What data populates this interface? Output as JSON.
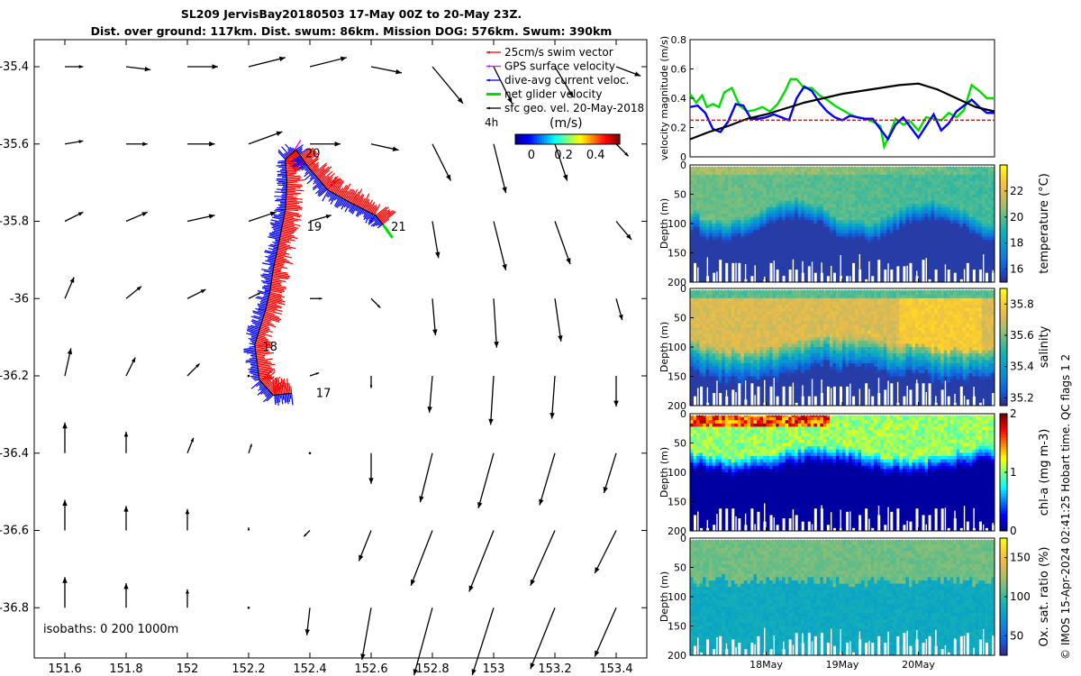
{
  "title": {
    "line1": "SL209 JervisBay20180503 17-May 00Z to 20-May 23Z.",
    "line2": "Dist. over ground: 117km. Dist. swum: 86km. Mission DOG: 576km. Swum: 390km"
  },
  "credit": "© IMOS 15-Apr-2024 02:41:25 Hobart time. QC flags 1  2",
  "colors": {
    "track_red": "#ff0000",
    "track_blue": "#0000ff",
    "glider_green": "#00e000",
    "gps_magenta": "#ff00ff",
    "black": "#000000"
  },
  "chart_data": [
    {
      "type": "scatter",
      "name": "map",
      "xlim": [
        151.5,
        153.5
      ],
      "ylim": [
        -36.93,
        -35.33
      ],
      "xticks": [
        "151.6",
        "151.8",
        "152",
        "152.2",
        "152.4",
        "152.6",
        "152.8",
        "153",
        "153.2",
        "153.4"
      ],
      "xtick_values": [
        151.6,
        151.8,
        152.0,
        152.2,
        152.4,
        152.6,
        152.8,
        153.0,
        153.2,
        153.4
      ],
      "yticks": [
        "-35.4",
        "-35.6",
        "-35.8",
        "-36",
        "-36.2",
        "-36.4",
        "-36.6",
        "-36.8"
      ],
      "ytick_values": [
        -35.4,
        -35.6,
        -35.8,
        -36.0,
        -36.2,
        -36.4,
        -36.6,
        -36.8
      ],
      "isobaths_label": "isobaths: 0   200  1000m",
      "legend": [
        {
          "label": "25cm/s swim vector",
          "color": "#ff0000"
        },
        {
          "label": "GPS surface velocity",
          "color": "#ff00ff"
        },
        {
          "label": "dive-avg current veloc.",
          "color": "#0000ff"
        },
        {
          "label": "net glider velocity",
          "color": "#00e000"
        },
        {
          "label": "sfc geo. vel. 20-May-2018",
          "color": "#000000"
        }
      ],
      "legend_extra": "4h",
      "colorbar": {
        "label": "(m/s)",
        "ticks": [
          "0",
          "0.2",
          "0.4"
        ],
        "range": [
          -0.1,
          0.55
        ]
      },
      "day_labels": [
        {
          "text": "17",
          "lon": 152.42,
          "lat": -36.245
        },
        {
          "text": "18",
          "lon": 152.245,
          "lat": -36.125
        },
        {
          "text": "19",
          "lon": 152.39,
          "lat": -35.815
        },
        {
          "text": "20",
          "lon": 152.385,
          "lat": -35.625
        },
        {
          "text": "21",
          "lon": 152.665,
          "lat": -35.815
        }
      ],
      "track": [
        {
          "lon": 152.34,
          "lat": -36.245
        },
        {
          "lon": 152.28,
          "lat": -36.25
        },
        {
          "lon": 152.235,
          "lat": -36.21
        },
        {
          "lon": 152.22,
          "lat": -36.12
        },
        {
          "lon": 152.255,
          "lat": -36.03
        },
        {
          "lon": 152.27,
          "lat": -35.98
        },
        {
          "lon": 152.28,
          "lat": -35.925
        },
        {
          "lon": 152.3,
          "lat": -35.85
        },
        {
          "lon": 152.32,
          "lat": -35.77
        },
        {
          "lon": 152.325,
          "lat": -35.7
        },
        {
          "lon": 152.32,
          "lat": -35.64
        },
        {
          "lon": 152.355,
          "lat": -35.615
        },
        {
          "lon": 152.395,
          "lat": -35.66
        },
        {
          "lon": 152.46,
          "lat": -35.72
        },
        {
          "lon": 152.54,
          "lat": -35.755
        },
        {
          "lon": 152.615,
          "lat": -35.785
        },
        {
          "lon": 152.64,
          "lat": -35.81
        }
      ],
      "vectors": [
        {
          "lon": 151.6,
          "lat": -35.4,
          "u": 0.06,
          "v": 0.0
        },
        {
          "lon": 151.8,
          "lat": -35.4,
          "u": 0.08,
          "v": -0.01
        },
        {
          "lon": 152.0,
          "lat": -35.4,
          "u": 0.1,
          "v": 0.0
        },
        {
          "lon": 152.2,
          "lat": -35.4,
          "u": 0.12,
          "v": 0.03
        },
        {
          "lon": 152.4,
          "lat": -35.4,
          "u": 0.12,
          "v": 0.03
        },
        {
          "lon": 152.6,
          "lat": -35.4,
          "u": 0.1,
          "v": -0.02
        },
        {
          "lon": 152.8,
          "lat": -35.4,
          "u": 0.1,
          "v": -0.12
        },
        {
          "lon": 153.0,
          "lat": -35.4,
          "u": 0.06,
          "v": -0.12
        },
        {
          "lon": 153.2,
          "lat": -35.4,
          "u": 0.06,
          "v": -0.1
        },
        {
          "lon": 153.4,
          "lat": -35.4,
          "u": 0.08,
          "v": -0.03
        },
        {
          "lon": 151.6,
          "lat": -35.6,
          "u": 0.06,
          "v": 0.01
        },
        {
          "lon": 151.8,
          "lat": -35.6,
          "u": 0.07,
          "v": 0.0
        },
        {
          "lon": 152.0,
          "lat": -35.6,
          "u": 0.09,
          "v": 0.0
        },
        {
          "lon": 152.2,
          "lat": -35.6,
          "u": 0.11,
          "v": 0.04
        },
        {
          "lon": 152.4,
          "lat": -35.6,
          "u": 0.1,
          "v": 0.0
        },
        {
          "lon": 152.6,
          "lat": -35.6,
          "u": 0.09,
          "v": -0.02
        },
        {
          "lon": 152.8,
          "lat": -35.6,
          "u": 0.06,
          "v": -0.12
        },
        {
          "lon": 153.0,
          "lat": -35.6,
          "u": 0.04,
          "v": -0.16
        },
        {
          "lon": 153.2,
          "lat": -35.6,
          "u": 0.04,
          "v": -0.12
        },
        {
          "lon": 153.4,
          "lat": -35.6,
          "u": 0.04,
          "v": -0.04
        },
        {
          "lon": 151.6,
          "lat": -35.8,
          "u": 0.06,
          "v": 0.03
        },
        {
          "lon": 151.8,
          "lat": -35.8,
          "u": 0.07,
          "v": 0.03
        },
        {
          "lon": 152.0,
          "lat": -35.8,
          "u": 0.09,
          "v": 0.02
        },
        {
          "lon": 152.2,
          "lat": -35.8,
          "u": 0.09,
          "v": 0.03
        },
        {
          "lon": 152.4,
          "lat": -35.8,
          "u": 0.07,
          "v": 0.02
        },
        {
          "lon": 152.6,
          "lat": -35.8,
          "u": 0.0,
          "v": 0.0
        },
        {
          "lon": 152.8,
          "lat": -35.8,
          "u": 0.02,
          "v": -0.12
        },
        {
          "lon": 153.0,
          "lat": -35.8,
          "u": 0.04,
          "v": -0.16
        },
        {
          "lon": 153.2,
          "lat": -35.8,
          "u": 0.05,
          "v": -0.14
        },
        {
          "lon": 153.4,
          "lat": -35.8,
          "u": 0.05,
          "v": -0.06
        },
        {
          "lon": 151.6,
          "lat": -36.0,
          "u": 0.03,
          "v": 0.07
        },
        {
          "lon": 151.8,
          "lat": -36.0,
          "u": 0.05,
          "v": 0.04
        },
        {
          "lon": 152.0,
          "lat": -36.0,
          "u": 0.06,
          "v": 0.03
        },
        {
          "lon": 152.2,
          "lat": -36.0,
          "u": 0.04,
          "v": 0.02
        },
        {
          "lon": 152.4,
          "lat": -36.0,
          "u": 0.04,
          "v": 0.0
        },
        {
          "lon": 152.6,
          "lat": -36.0,
          "u": 0.03,
          "v": -0.03
        },
        {
          "lon": 152.8,
          "lat": -36.0,
          "u": 0.01,
          "v": -0.12
        },
        {
          "lon": 153.0,
          "lat": -36.0,
          "u": 0.01,
          "v": -0.16
        },
        {
          "lon": 153.2,
          "lat": -36.0,
          "u": 0.02,
          "v": -0.14
        },
        {
          "lon": 153.4,
          "lat": -36.0,
          "u": 0.02,
          "v": -0.07
        },
        {
          "lon": 151.6,
          "lat": -36.2,
          "u": 0.02,
          "v": 0.09
        },
        {
          "lon": 151.8,
          "lat": -36.2,
          "u": 0.03,
          "v": 0.06
        },
        {
          "lon": 152.0,
          "lat": -36.2,
          "u": 0.04,
          "v": 0.04
        },
        {
          "lon": 152.2,
          "lat": -36.2,
          "u": 0.0,
          "v": 0.0
        },
        {
          "lon": 152.4,
          "lat": -36.2,
          "u": 0.03,
          "v": 0.01
        },
        {
          "lon": 152.6,
          "lat": -36.2,
          "u": 0.0,
          "v": -0.04
        },
        {
          "lon": 152.8,
          "lat": -36.2,
          "u": -0.01,
          "v": -0.12
        },
        {
          "lon": 153.0,
          "lat": -36.2,
          "u": -0.01,
          "v": -0.16
        },
        {
          "lon": 153.2,
          "lat": -36.2,
          "u": -0.01,
          "v": -0.14
        },
        {
          "lon": 153.4,
          "lat": -36.2,
          "u": 0.0,
          "v": -0.1
        },
        {
          "lon": 151.6,
          "lat": -36.4,
          "u": 0.0,
          "v": 0.1
        },
        {
          "lon": 151.8,
          "lat": -36.4,
          "u": 0.0,
          "v": 0.07
        },
        {
          "lon": 152.0,
          "lat": -36.4,
          "u": 0.02,
          "v": 0.05
        },
        {
          "lon": 152.2,
          "lat": -36.4,
          "u": 0.01,
          "v": 0.03
        },
        {
          "lon": 152.4,
          "lat": -36.4,
          "u": 0.0,
          "v": 0.0
        },
        {
          "lon": 152.6,
          "lat": -36.4,
          "u": 0.0,
          "v": -0.1
        },
        {
          "lon": 152.8,
          "lat": -36.4,
          "u": -0.04,
          "v": -0.16
        },
        {
          "lon": 153.0,
          "lat": -36.4,
          "u": -0.05,
          "v": -0.18
        },
        {
          "lon": 153.2,
          "lat": -36.4,
          "u": -0.05,
          "v": -0.17
        },
        {
          "lon": 153.4,
          "lat": -36.4,
          "u": -0.04,
          "v": -0.13
        },
        {
          "lon": 151.6,
          "lat": -36.6,
          "u": 0.0,
          "v": 0.1
        },
        {
          "lon": 151.8,
          "lat": -36.6,
          "u": 0.0,
          "v": 0.08
        },
        {
          "lon": 152.0,
          "lat": -36.6,
          "u": 0.0,
          "v": 0.07
        },
        {
          "lon": 152.2,
          "lat": -36.6,
          "u": 0.0,
          "v": 0.01
        },
        {
          "lon": 152.4,
          "lat": -36.6,
          "u": -0.02,
          "v": -0.02
        },
        {
          "lon": 152.6,
          "lat": -36.6,
          "u": -0.04,
          "v": -0.1
        },
        {
          "lon": 152.8,
          "lat": -36.6,
          "u": -0.07,
          "v": -0.18
        },
        {
          "lon": 153.0,
          "lat": -36.6,
          "u": -0.08,
          "v": -0.2
        },
        {
          "lon": 153.2,
          "lat": -36.6,
          "u": -0.08,
          "v": -0.18
        },
        {
          "lon": 153.4,
          "lat": -36.6,
          "u": -0.07,
          "v": -0.14
        },
        {
          "lon": 151.6,
          "lat": -36.8,
          "u": 0.0,
          "v": 0.1
        },
        {
          "lon": 151.8,
          "lat": -36.8,
          "u": 0.0,
          "v": 0.08
        },
        {
          "lon": 152.0,
          "lat": -36.8,
          "u": 0.0,
          "v": 0.06
        },
        {
          "lon": 152.2,
          "lat": -36.8,
          "u": 0.0,
          "v": 0.0
        },
        {
          "lon": 152.4,
          "lat": -36.8,
          "u": -0.01,
          "v": -0.09
        },
        {
          "lon": 152.6,
          "lat": -36.8,
          "u": -0.03,
          "v": -0.17
        },
        {
          "lon": 152.8,
          "lat": -36.8,
          "u": -0.06,
          "v": -0.22
        },
        {
          "lon": 153.0,
          "lat": -36.8,
          "u": -0.07,
          "v": -0.22
        },
        {
          "lon": 153.2,
          "lat": -36.8,
          "u": -0.08,
          "v": -0.2
        },
        {
          "lon": 153.4,
          "lat": -36.8,
          "u": -0.07,
          "v": -0.16
        }
      ]
    },
    {
      "type": "line",
      "name": "velocity",
      "ylabel": "velocity magnitude (m/s)",
      "ylim": [
        0,
        0.8
      ],
      "yticks": [
        "0",
        "0.2",
        "0.4",
        "0.6",
        "0.8"
      ],
      "ytick_values": [
        0,
        0.2,
        0.4,
        0.6,
        0.8
      ],
      "xlim": [
        0,
        4
      ],
      "series": [
        {
          "color": "#00e000",
          "x": [
            0,
            0.08,
            0.16,
            0.22,
            0.3,
            0.38,
            0.45,
            0.55,
            0.65,
            0.75,
            0.85,
            0.95,
            1.05,
            1.15,
            1.25,
            1.32,
            1.4,
            1.5,
            1.6,
            1.7,
            1.8,
            1.9,
            2.0,
            2.1,
            2.2,
            2.3,
            2.4,
            2.5,
            2.55,
            2.62,
            2.7,
            2.8,
            2.9,
            3.0,
            3.1,
            3.2,
            3.3,
            3.4,
            3.5,
            3.6,
            3.7,
            3.8,
            3.9,
            4.0
          ],
          "y": [
            0.43,
            0.37,
            0.42,
            0.34,
            0.36,
            0.34,
            0.44,
            0.47,
            0.35,
            0.31,
            0.32,
            0.34,
            0.31,
            0.36,
            0.45,
            0.53,
            0.53,
            0.47,
            0.47,
            0.42,
            0.39,
            0.35,
            0.32,
            0.29,
            0.27,
            0.26,
            0.24,
            0.21,
            0.07,
            0.15,
            0.26,
            0.22,
            0.24,
            0.18,
            0.27,
            0.26,
            0.25,
            0.3,
            0.27,
            0.32,
            0.49,
            0.45,
            0.4,
            0.4
          ]
        },
        {
          "color": "#0000ff",
          "x": [
            0,
            0.1,
            0.2,
            0.3,
            0.4,
            0.5,
            0.6,
            0.7,
            0.8,
            0.9,
            1.0,
            1.1,
            1.2,
            1.3,
            1.4,
            1.5,
            1.6,
            1.7,
            1.8,
            1.9,
            2.0,
            2.1,
            2.2,
            2.3,
            2.4,
            2.5,
            2.6,
            2.7,
            2.8,
            2.9,
            3.0,
            3.1,
            3.2,
            3.3,
            3.4,
            3.5,
            3.6,
            3.7,
            3.8,
            3.9,
            4.0
          ],
          "y": [
            0.34,
            0.35,
            0.3,
            0.19,
            0.17,
            0.24,
            0.36,
            0.35,
            0.26,
            0.26,
            0.27,
            0.29,
            0.27,
            0.25,
            0.4,
            0.48,
            0.45,
            0.37,
            0.31,
            0.27,
            0.25,
            0.28,
            0.27,
            0.26,
            0.26,
            0.19,
            0.12,
            0.22,
            0.27,
            0.2,
            0.13,
            0.21,
            0.29,
            0.18,
            0.23,
            0.31,
            0.35,
            0.39,
            0.34,
            0.3,
            0.3
          ]
        },
        {
          "color": "#000000",
          "x": [
            0,
            0.25,
            0.5,
            0.75,
            1.0,
            1.25,
            1.5,
            1.75,
            2.0,
            2.25,
            2.5,
            2.75,
            3.0,
            3.25,
            3.5,
            3.75,
            4.0
          ],
          "y": [
            0.12,
            0.17,
            0.21,
            0.26,
            0.29,
            0.33,
            0.37,
            0.4,
            0.43,
            0.45,
            0.47,
            0.49,
            0.5,
            0.46,
            0.4,
            0.34,
            0.31
          ]
        },
        {
          "color": "#ff0000",
          "dashed": true,
          "x": [
            0,
            4
          ],
          "y": [
            0.25,
            0.25
          ]
        }
      ]
    },
    {
      "type": "heatmap",
      "name": "temperature",
      "ylabel": "Depth (m)",
      "ylim": [
        200,
        0
      ],
      "yticks": [
        "0",
        "50",
        "100",
        "150",
        "200"
      ],
      "ytick_values": [
        0,
        50,
        100,
        150,
        200
      ],
      "colorbar_label": "temperature (°C)",
      "colorbar_ticks": [
        "16",
        "18",
        "20",
        "22"
      ],
      "colorbar_tick_values": [
        16,
        18,
        20,
        22
      ],
      "colorbar_range": [
        15,
        24
      ]
    },
    {
      "type": "heatmap",
      "name": "salinity",
      "ylabel": "Depth (m)",
      "ylim": [
        200,
        0
      ],
      "yticks": [
        "0",
        "50",
        "100",
        "150",
        "200"
      ],
      "ytick_values": [
        0,
        50,
        100,
        150,
        200
      ],
      "colorbar_label": "salinity",
      "colorbar_ticks": [
        "35.2",
        "35.4",
        "35.6",
        "35.8"
      ],
      "colorbar_tick_values": [
        35.2,
        35.4,
        35.6,
        35.8
      ],
      "colorbar_range": [
        35.15,
        35.9
      ]
    },
    {
      "type": "heatmap",
      "name": "chla",
      "ylabel": "Depth (m)",
      "ylim": [
        200,
        0
      ],
      "yticks": [
        "0",
        "50",
        "100",
        "150",
        "200"
      ],
      "ytick_values": [
        0,
        50,
        100,
        150,
        200
      ],
      "colorbar_label": "chl-a (mg m-3)",
      "colorbar_ticks": [
        "0",
        "1",
        "2"
      ],
      "colorbar_tick_values": [
        0,
        1,
        2
      ],
      "colorbar_range": [
        0,
        2
      ]
    },
    {
      "type": "heatmap",
      "name": "oxygen",
      "ylabel": "Depth (m)",
      "ylim": [
        200,
        0
      ],
      "yticks": [
        "0",
        "50",
        "100",
        "150",
        "200"
      ],
      "ytick_values": [
        0,
        50,
        100,
        150,
        200
      ],
      "xticks": [
        "18May",
        "19May",
        "20May"
      ],
      "xtick_values": [
        1,
        2,
        3
      ],
      "xlim": [
        0,
        4
      ],
      "colorbar_label": "Ox. sat. ratio (%)",
      "colorbar_ticks": [
        "50",
        "100",
        "150"
      ],
      "colorbar_tick_values": [
        50,
        100,
        150
      ],
      "colorbar_range": [
        25,
        175
      ]
    }
  ]
}
